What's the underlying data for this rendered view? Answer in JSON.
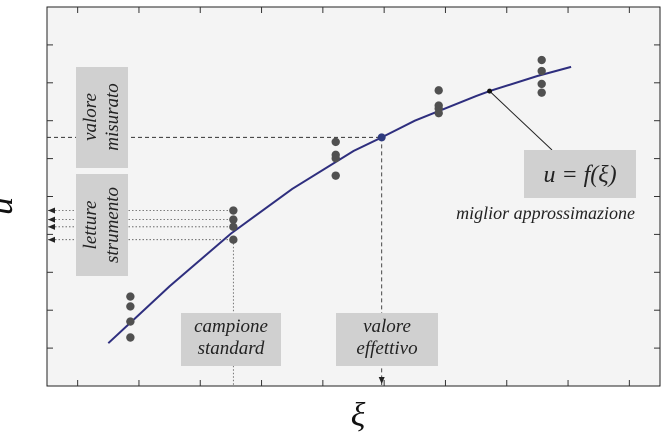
{
  "chart_data": {
    "type": "scatter",
    "title": "",
    "xlabel": "ξ",
    "ylabel": "u",
    "xlim": [
      0,
      10
    ],
    "ylim": [
      0,
      10
    ],
    "grid": false,
    "series": [
      {
        "type": "scatter",
        "x": [
          1.36,
          1.36,
          1.36,
          1.36,
          3.04,
          3.04,
          3.04,
          3.04,
          4.71,
          4.71,
          4.71,
          4.71,
          6.39,
          6.39,
          6.39,
          6.39,
          8.07,
          8.07,
          8.07,
          8.07
        ],
        "y": [
          2.36,
          2.1,
          1.7,
          1.28,
          4.63,
          4.39,
          4.2,
          3.86,
          6.44,
          6.1,
          6.01,
          5.55,
          7.8,
          7.4,
          7.32,
          7.2,
          8.6,
          8.31,
          7.97,
          7.74
        ]
      },
      {
        "type": "line",
        "note_curve": true,
        "x": [
          1.0,
          2.0,
          3.0,
          4.0,
          5.0,
          5.46,
          6.0,
          7.0,
          7.22,
          8.0,
          8.55
        ],
        "y": [
          1.13,
          2.63,
          4.02,
          5.2,
          6.2,
          6.56,
          7.0,
          7.65,
          7.78,
          8.18,
          8.42
        ]
      }
    ],
    "highlight_point": {
      "x": 5.46,
      "y": 6.56
    },
    "annotations": {
      "valore_misurato": "valore misurato",
      "letture_strumento": "letture strumento",
      "campione_standard": "campione standard",
      "valore_effettivo": "valore effettivo",
      "equation": "u = f(ξ)",
      "best_fit_label": "miglior approssimazione"
    },
    "colors": {
      "curve": "#2e2e7e",
      "points": "#505050",
      "highlight": "#2e3a7e",
      "label_box": "#d0d0d0",
      "plot_bg": "#f4f4f4",
      "axes": "#222222"
    }
  }
}
